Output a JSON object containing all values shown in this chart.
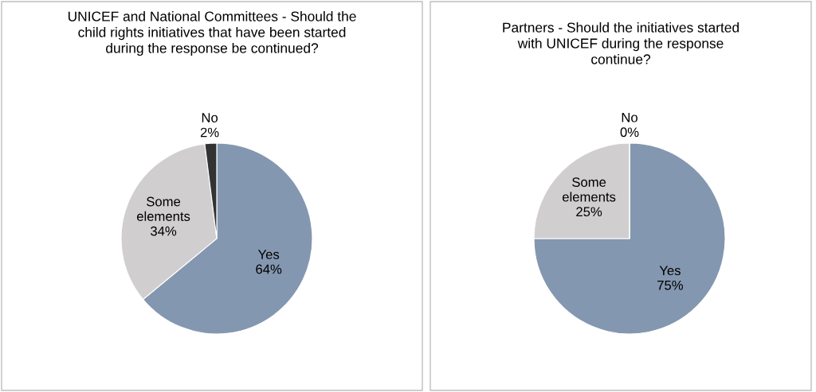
{
  "chart_data": [
    {
      "type": "pie",
      "title": "UNICEF and National Committees - Should the\nchild rights initiatives that have been started\nduring the response be continued?",
      "categories": [
        "Yes",
        "Some elements",
        "No"
      ],
      "values": [
        64,
        34,
        2
      ],
      "colors": [
        "#8497b0",
        "#d0cece",
        "#333333"
      ],
      "value_labels": [
        "64%",
        "34%",
        "2%"
      ]
    },
    {
      "type": "pie",
      "title": "Partners - Should the initiatives started\nwith UNICEF during the response\ncontinue?",
      "categories": [
        "Yes",
        "Some elements",
        "No"
      ],
      "values": [
        75,
        25,
        0
      ],
      "colors": [
        "#8497b0",
        "#d0cece",
        "#333333"
      ],
      "value_labels": [
        "75%",
        "25%",
        "0%"
      ]
    }
  ]
}
